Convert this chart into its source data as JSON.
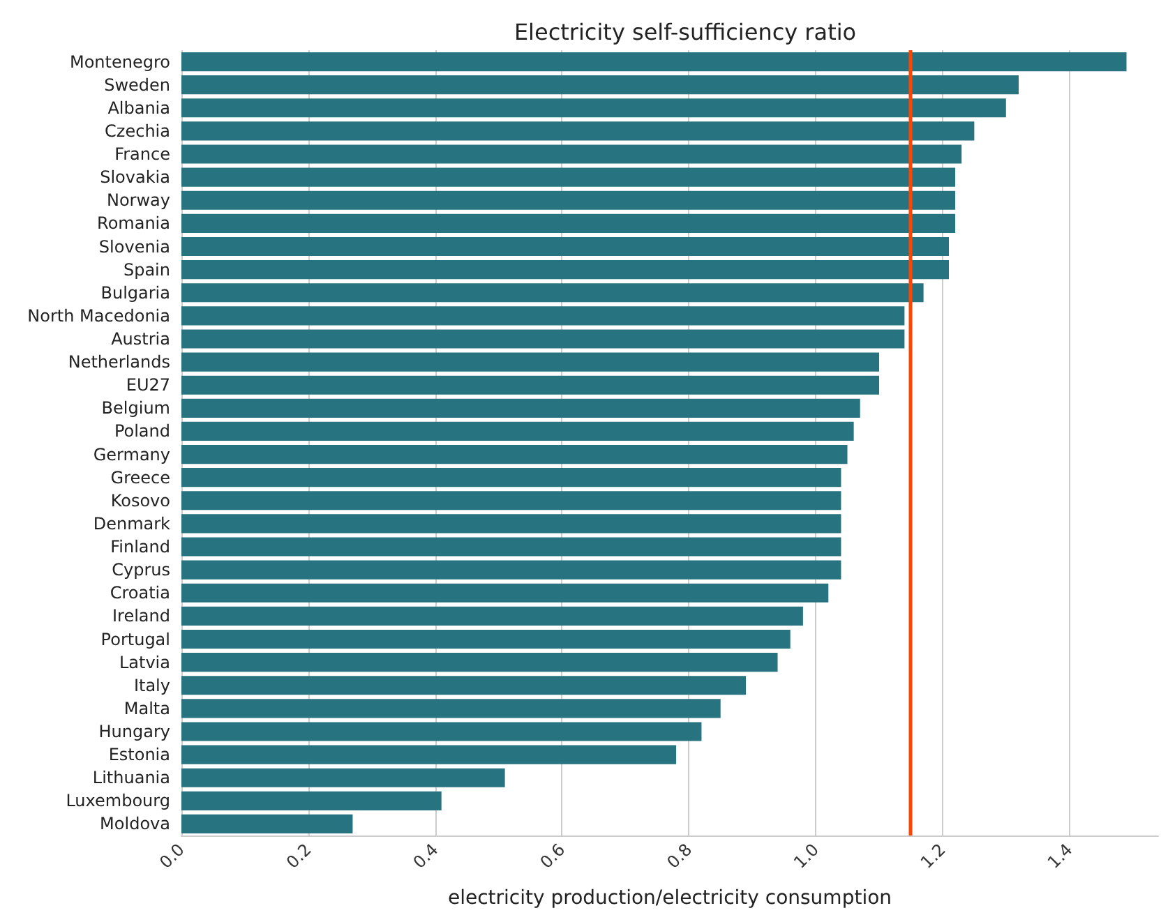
{
  "chart_data": {
    "type": "bar",
    "orientation": "horizontal",
    "title": "Electricity self-sufficiency ratio",
    "xlabel": "electricity production/electricity consumption",
    "categories": [
      "Montenegro",
      "Sweden",
      "Albania",
      "Czechia",
      "France",
      "Slovakia",
      "Norway",
      "Romania",
      "Slovenia",
      "Spain",
      "Bulgaria",
      "North Macedonia",
      "Austria",
      "Netherlands",
      "EU27",
      "Belgium",
      "Poland",
      "Germany",
      "Greece",
      "Kosovo",
      "Denmark",
      "Finland",
      "Cyprus",
      "Croatia",
      "Ireland",
      "Portugal",
      "Latvia",
      "Italy",
      "Malta",
      "Hungary",
      "Estonia",
      "Lithuania",
      "Luxembourg",
      "Moldova"
    ],
    "values": [
      1.49,
      1.32,
      1.3,
      1.25,
      1.23,
      1.22,
      1.22,
      1.22,
      1.21,
      1.21,
      1.17,
      1.14,
      1.14,
      1.1,
      1.1,
      1.07,
      1.06,
      1.05,
      1.04,
      1.04,
      1.04,
      1.04,
      1.04,
      1.02,
      0.98,
      0.96,
      0.94,
      0.89,
      0.85,
      0.82,
      0.78,
      0.51,
      0.41,
      0.27
    ],
    "color": "#287380",
    "xlim": [
      0,
      1.54
    ],
    "xticks": [
      {
        "value": 0,
        "label": "0.0"
      },
      {
        "value": 0.2,
        "label": "0.2"
      },
      {
        "value": 0.4,
        "label": "0.4"
      },
      {
        "value": 0.6,
        "label": "0.6"
      },
      {
        "value": 0.8,
        "label": "0.8"
      },
      {
        "value": 1,
        "label": "1.0"
      },
      {
        "value": 1.2,
        "label": "1.2"
      },
      {
        "value": 1.4,
        "label": "1.4"
      }
    ],
    "grid": "x",
    "ref_lines": [
      {
        "axis": "x",
        "value": 1.15,
        "color": "#ff4500",
        "line_style": "solid"
      }
    ]
  }
}
